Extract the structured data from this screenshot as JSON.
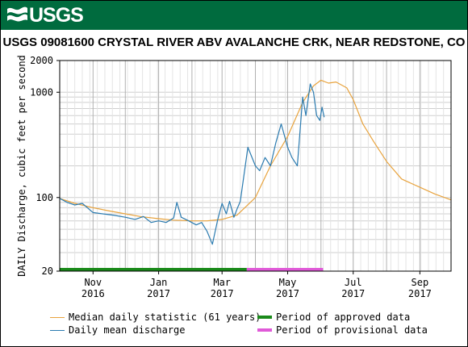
{
  "header": {
    "logo_text": "USGS",
    "title": "USGS 09081600 CRYSTAL RIVER ABV AVALANCHE CRK, NEAR REDSTONE, CO"
  },
  "colors": {
    "banner": "#006b3e",
    "median": "#e8a33d",
    "discharge": "#2b7bb0",
    "approved": "#1a8a1a",
    "provisional": "#e05ad8"
  },
  "chart_data": {
    "type": "line",
    "title": "USGS 09081600 CRYSTAL RIVER ABV AVALANCHE CRK, NEAR REDSTONE, CO",
    "ylabel": "DAILY Discharge, cubic feet per second",
    "yscale": "log",
    "ylim": [
      20,
      2000
    ],
    "yticks": [
      20,
      100,
      1000,
      2000
    ],
    "xlim": [
      "2016-10-01",
      "2017-09-30"
    ],
    "xticks": [
      {
        "date": "2016-11-01",
        "month": "Nov",
        "year": "2016"
      },
      {
        "date": "2017-01-01",
        "month": "Jan",
        "year": "2017"
      },
      {
        "date": "2017-03-01",
        "month": "Mar",
        "year": "2017"
      },
      {
        "date": "2017-05-01",
        "month": "May",
        "year": "2017"
      },
      {
        "date": "2017-07-01",
        "month": "Jul",
        "year": "2017"
      },
      {
        "date": "2017-09-01",
        "month": "Sep",
        "year": "2017"
      }
    ],
    "grid": true,
    "legend_position": "bottom",
    "series": [
      {
        "name": "Median daily statistic (61 years)",
        "x": [
          "2016-10-01",
          "2016-10-15",
          "2016-11-01",
          "2016-11-15",
          "2016-12-01",
          "2016-12-15",
          "2017-01-01",
          "2017-01-15",
          "2017-02-01",
          "2017-02-15",
          "2017-03-01",
          "2017-03-15",
          "2017-04-01",
          "2017-04-15",
          "2017-05-01",
          "2017-05-15",
          "2017-05-25",
          "2017-06-01",
          "2017-06-08",
          "2017-06-15",
          "2017-06-25",
          "2017-07-01",
          "2017-07-10",
          "2017-07-20",
          "2017-08-01",
          "2017-08-15",
          "2017-09-01",
          "2017-09-15",
          "2017-09-30"
        ],
        "y": [
          98,
          88,
          80,
          75,
          70,
          66,
          63,
          61,
          60,
          60,
          62,
          68,
          100,
          200,
          380,
          800,
          1150,
          1300,
          1220,
          1250,
          1100,
          850,
          500,
          340,
          220,
          150,
          125,
          108,
          95
        ]
      },
      {
        "name": "Daily mean discharge",
        "x": [
          "2016-10-01",
          "2016-10-08",
          "2016-10-15",
          "2016-10-22",
          "2016-11-01",
          "2016-11-10",
          "2016-11-20",
          "2016-12-01",
          "2016-12-10",
          "2016-12-18",
          "2016-12-25",
          "2017-01-01",
          "2017-01-08",
          "2017-01-15",
          "2017-01-18",
          "2017-01-22",
          "2017-01-29",
          "2017-02-05",
          "2017-02-10",
          "2017-02-15",
          "2017-02-20",
          "2017-02-25",
          "2017-03-01",
          "2017-03-05",
          "2017-03-08",
          "2017-03-12",
          "2017-03-15",
          "2017-03-18",
          "2017-03-25",
          "2017-04-01",
          "2017-04-05",
          "2017-04-10",
          "2017-04-15",
          "2017-04-20",
          "2017-04-25",
          "2017-05-01",
          "2017-05-05",
          "2017-05-10",
          "2017-05-15",
          "2017-05-18",
          "2017-05-22",
          "2017-05-25",
          "2017-05-28",
          "2017-05-31",
          "2017-06-02",
          "2017-06-04"
        ],
        "y": [
          98,
          90,
          85,
          88,
          72,
          70,
          68,
          65,
          62,
          66,
          58,
          60,
          58,
          64,
          90,
          65,
          60,
          55,
          58,
          48,
          36,
          62,
          88,
          70,
          92,
          65,
          78,
          92,
          300,
          200,
          180,
          240,
          200,
          330,
          500,
          300,
          240,
          200,
          900,
          600,
          1200,
          1000,
          600,
          540,
          720,
          580
        ]
      }
    ],
    "periods": [
      {
        "name": "Period of approved data",
        "start": "2016-10-01",
        "end": "2017-03-24"
      },
      {
        "name": "Period of provisional data",
        "start": "2017-03-24",
        "end": "2017-06-03"
      }
    ]
  },
  "legend": [
    {
      "label": "Median daily statistic (61 years)",
      "kind": "line",
      "color": "#e8a33d"
    },
    {
      "label": "Daily mean discharge",
      "kind": "line",
      "color": "#2b7bb0"
    },
    {
      "label": "Period of approved data",
      "kind": "bar",
      "color": "#1a8a1a"
    },
    {
      "label": "Period of provisional data",
      "kind": "bar",
      "color": "#e05ad8"
    }
  ]
}
